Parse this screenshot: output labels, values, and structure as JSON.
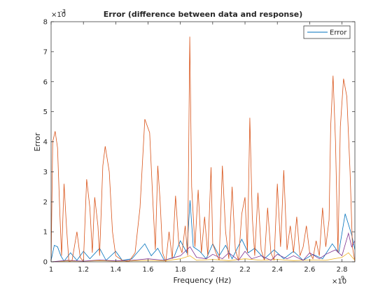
{
  "chart_data": {
    "type": "line",
    "title": "Error (difference between data and response)",
    "xlabel": "Frequency (Hz)",
    "ylabel": "Error",
    "x_exponent_label": "×10",
    "x_exponent_power": "9",
    "y_exponent_label": "×10",
    "y_exponent_power": "-3",
    "xlim": [
      1.0,
      2.88
    ],
    "ylim": [
      0,
      8
    ],
    "x_ticks": [
      1.0,
      1.2,
      1.4,
      1.6,
      1.8,
      2.0,
      2.2,
      2.4,
      2.6,
      2.8
    ],
    "x_tick_labels": [
      "1",
      "1.2",
      "1.4",
      "1.6",
      "1.8",
      "2",
      "2.2",
      "2.4",
      "2.6",
      "2.8"
    ],
    "y_ticks": [
      0,
      1,
      2,
      3,
      4,
      5,
      6,
      7,
      8
    ],
    "y_tick_labels": [
      "0",
      "1",
      "2",
      "3",
      "4",
      "5",
      "6",
      "7",
      "8"
    ],
    "legend": {
      "entries": [
        "Error"
      ],
      "placement": "top-right"
    },
    "grid": false,
    "series": [
      {
        "name": "Error",
        "color": "#0072BD",
        "points": [
          [
            1.0,
            0.05
          ],
          [
            1.02,
            0.55
          ],
          [
            1.04,
            0.5
          ],
          [
            1.06,
            0.2
          ],
          [
            1.08,
            0.02
          ],
          [
            1.12,
            0.3
          ],
          [
            1.16,
            0.05
          ],
          [
            1.2,
            0.35
          ],
          [
            1.24,
            0.1
          ],
          [
            1.3,
            0.45
          ],
          [
            1.34,
            0.05
          ],
          [
            1.4,
            0.35
          ],
          [
            1.44,
            0.05
          ],
          [
            1.5,
            0.1
          ],
          [
            1.58,
            0.6
          ],
          [
            1.62,
            0.2
          ],
          [
            1.66,
            0.45
          ],
          [
            1.7,
            0.05
          ],
          [
            1.76,
            0.15
          ],
          [
            1.8,
            0.7
          ],
          [
            1.84,
            0.3
          ],
          [
            1.86,
            2.05
          ],
          [
            1.88,
            0.5
          ],
          [
            1.92,
            0.35
          ],
          [
            1.96,
            0.1
          ],
          [
            2.0,
            0.6
          ],
          [
            2.04,
            0.2
          ],
          [
            2.08,
            0.55
          ],
          [
            2.12,
            0.1
          ],
          [
            2.18,
            0.75
          ],
          [
            2.22,
            0.3
          ],
          [
            2.26,
            0.45
          ],
          [
            2.32,
            0.1
          ],
          [
            2.38,
            0.4
          ],
          [
            2.44,
            0.1
          ],
          [
            2.5,
            0.35
          ],
          [
            2.56,
            0.05
          ],
          [
            2.62,
            0.25
          ],
          [
            2.68,
            0.1
          ],
          [
            2.74,
            0.6
          ],
          [
            2.78,
            0.3
          ],
          [
            2.82,
            1.6
          ],
          [
            2.86,
            0.9
          ],
          [
            2.88,
            0.4
          ]
        ]
      },
      {
        "name": "",
        "color": "#D95319",
        "points": [
          [
            1.0,
            0.0
          ],
          [
            1.01,
            4.0
          ],
          [
            1.025,
            4.35
          ],
          [
            1.04,
            3.8
          ],
          [
            1.055,
            1.5
          ],
          [
            1.065,
            0.2
          ],
          [
            1.08,
            2.6
          ],
          [
            1.095,
            1.2
          ],
          [
            1.11,
            0.0
          ],
          [
            1.13,
            0.05
          ],
          [
            1.16,
            1.0
          ],
          [
            1.18,
            0.15
          ],
          [
            1.2,
            0.0
          ],
          [
            1.22,
            2.75
          ],
          [
            1.24,
            1.8
          ],
          [
            1.255,
            0.3
          ],
          [
            1.27,
            2.15
          ],
          [
            1.29,
            1.2
          ],
          [
            1.3,
            0.2
          ],
          [
            1.32,
            3.2
          ],
          [
            1.335,
            3.85
          ],
          [
            1.36,
            3.0
          ],
          [
            1.38,
            1.0
          ],
          [
            1.4,
            0.2
          ],
          [
            1.44,
            0.05
          ],
          [
            1.48,
            0.0
          ],
          [
            1.52,
            0.3
          ],
          [
            1.55,
            1.8
          ],
          [
            1.58,
            4.75
          ],
          [
            1.61,
            4.3
          ],
          [
            1.63,
            2.0
          ],
          [
            1.645,
            0.4
          ],
          [
            1.66,
            3.2
          ],
          [
            1.675,
            2.0
          ],
          [
            1.69,
            0.3
          ],
          [
            1.71,
            0.0
          ],
          [
            1.73,
            1.0
          ],
          [
            1.75,
            0.1
          ],
          [
            1.77,
            2.2
          ],
          [
            1.79,
            0.6
          ],
          [
            1.81,
            0.3
          ],
          [
            1.83,
            1.2
          ],
          [
            1.845,
            0.2
          ],
          [
            1.858,
            7.5
          ],
          [
            1.87,
            2.5
          ],
          [
            1.89,
            0.5
          ],
          [
            1.91,
            2.4
          ],
          [
            1.93,
            0.3
          ],
          [
            1.95,
            1.5
          ],
          [
            1.97,
            0.2
          ],
          [
            1.99,
            3.15
          ],
          [
            2.0,
            0.6
          ],
          [
            2.02,
            0.3
          ],
          [
            2.04,
            0.05
          ],
          [
            2.06,
            3.2
          ],
          [
            2.08,
            1.0
          ],
          [
            2.1,
            0.1
          ],
          [
            2.12,
            2.5
          ],
          [
            2.14,
            0.4
          ],
          [
            2.16,
            0.05
          ],
          [
            2.18,
            1.6
          ],
          [
            2.2,
            2.15
          ],
          [
            2.215,
            0.3
          ],
          [
            2.23,
            4.8
          ],
          [
            2.245,
            1.5
          ],
          [
            2.26,
            0.2
          ],
          [
            2.28,
            2.3
          ],
          [
            2.3,
            0.4
          ],
          [
            2.32,
            0.05
          ],
          [
            2.34,
            1.8
          ],
          [
            2.36,
            0.3
          ],
          [
            2.38,
            0.05
          ],
          [
            2.4,
            2.6
          ],
          [
            2.42,
            0.5
          ],
          [
            2.44,
            3.05
          ],
          [
            2.46,
            0.4
          ],
          [
            2.48,
            1.2
          ],
          [
            2.5,
            0.3
          ],
          [
            2.52,
            1.5
          ],
          [
            2.54,
            0.2
          ],
          [
            2.56,
            0.5
          ],
          [
            2.58,
            1.2
          ],
          [
            2.6,
            0.3
          ],
          [
            2.62,
            0.1
          ],
          [
            2.64,
            0.7
          ],
          [
            2.66,
            0.2
          ],
          [
            2.68,
            1.8
          ],
          [
            2.7,
            0.5
          ],
          [
            2.72,
            1.4
          ],
          [
            2.73,
            4.5
          ],
          [
            2.745,
            6.2
          ],
          [
            2.76,
            4.0
          ],
          [
            2.775,
            0.3
          ],
          [
            2.79,
            4.5
          ],
          [
            2.81,
            6.1
          ],
          [
            2.83,
            5.5
          ],
          [
            2.85,
            3.0
          ],
          [
            2.865,
            0.5
          ],
          [
            2.88,
            0.0
          ]
        ]
      },
      {
        "name": "",
        "color": "#EDB120",
        "points": [
          [
            1.0,
            0.0
          ],
          [
            1.1,
            0.03
          ],
          [
            1.2,
            0.02
          ],
          [
            1.3,
            0.04
          ],
          [
            1.4,
            0.02
          ],
          [
            1.5,
            0.03
          ],
          [
            1.6,
            0.05
          ],
          [
            1.7,
            0.03
          ],
          [
            1.8,
            0.1
          ],
          [
            1.86,
            0.2
          ],
          [
            1.9,
            0.05
          ],
          [
            2.0,
            0.08
          ],
          [
            2.1,
            0.04
          ],
          [
            2.2,
            0.1
          ],
          [
            2.3,
            0.05
          ],
          [
            2.4,
            0.08
          ],
          [
            2.5,
            0.04
          ],
          [
            2.6,
            0.06
          ],
          [
            2.7,
            0.05
          ],
          [
            2.8,
            0.15
          ],
          [
            2.84,
            0.3
          ],
          [
            2.88,
            0.05
          ]
        ]
      },
      {
        "name": "",
        "color": "#7E2F8E",
        "points": [
          [
            1.0,
            0.0
          ],
          [
            1.1,
            0.05
          ],
          [
            1.2,
            0.02
          ],
          [
            1.3,
            0.06
          ],
          [
            1.4,
            0.03
          ],
          [
            1.5,
            0.05
          ],
          [
            1.6,
            0.1
          ],
          [
            1.7,
            0.05
          ],
          [
            1.8,
            0.2
          ],
          [
            1.86,
            0.5
          ],
          [
            1.9,
            0.15
          ],
          [
            1.96,
            0.1
          ],
          [
            2.0,
            0.25
          ],
          [
            2.06,
            0.1
          ],
          [
            2.1,
            0.3
          ],
          [
            2.16,
            0.05
          ],
          [
            2.2,
            0.35
          ],
          [
            2.24,
            0.1
          ],
          [
            2.3,
            0.2
          ],
          [
            2.36,
            0.05
          ],
          [
            2.4,
            0.25
          ],
          [
            2.46,
            0.1
          ],
          [
            2.5,
            0.2
          ],
          [
            2.56,
            0.05
          ],
          [
            2.6,
            0.3
          ],
          [
            2.66,
            0.1
          ],
          [
            2.7,
            0.25
          ],
          [
            2.76,
            0.4
          ],
          [
            2.8,
            0.2
          ],
          [
            2.84,
            0.95
          ],
          [
            2.86,
            0.5
          ],
          [
            2.88,
            0.7
          ]
        ]
      }
    ]
  }
}
